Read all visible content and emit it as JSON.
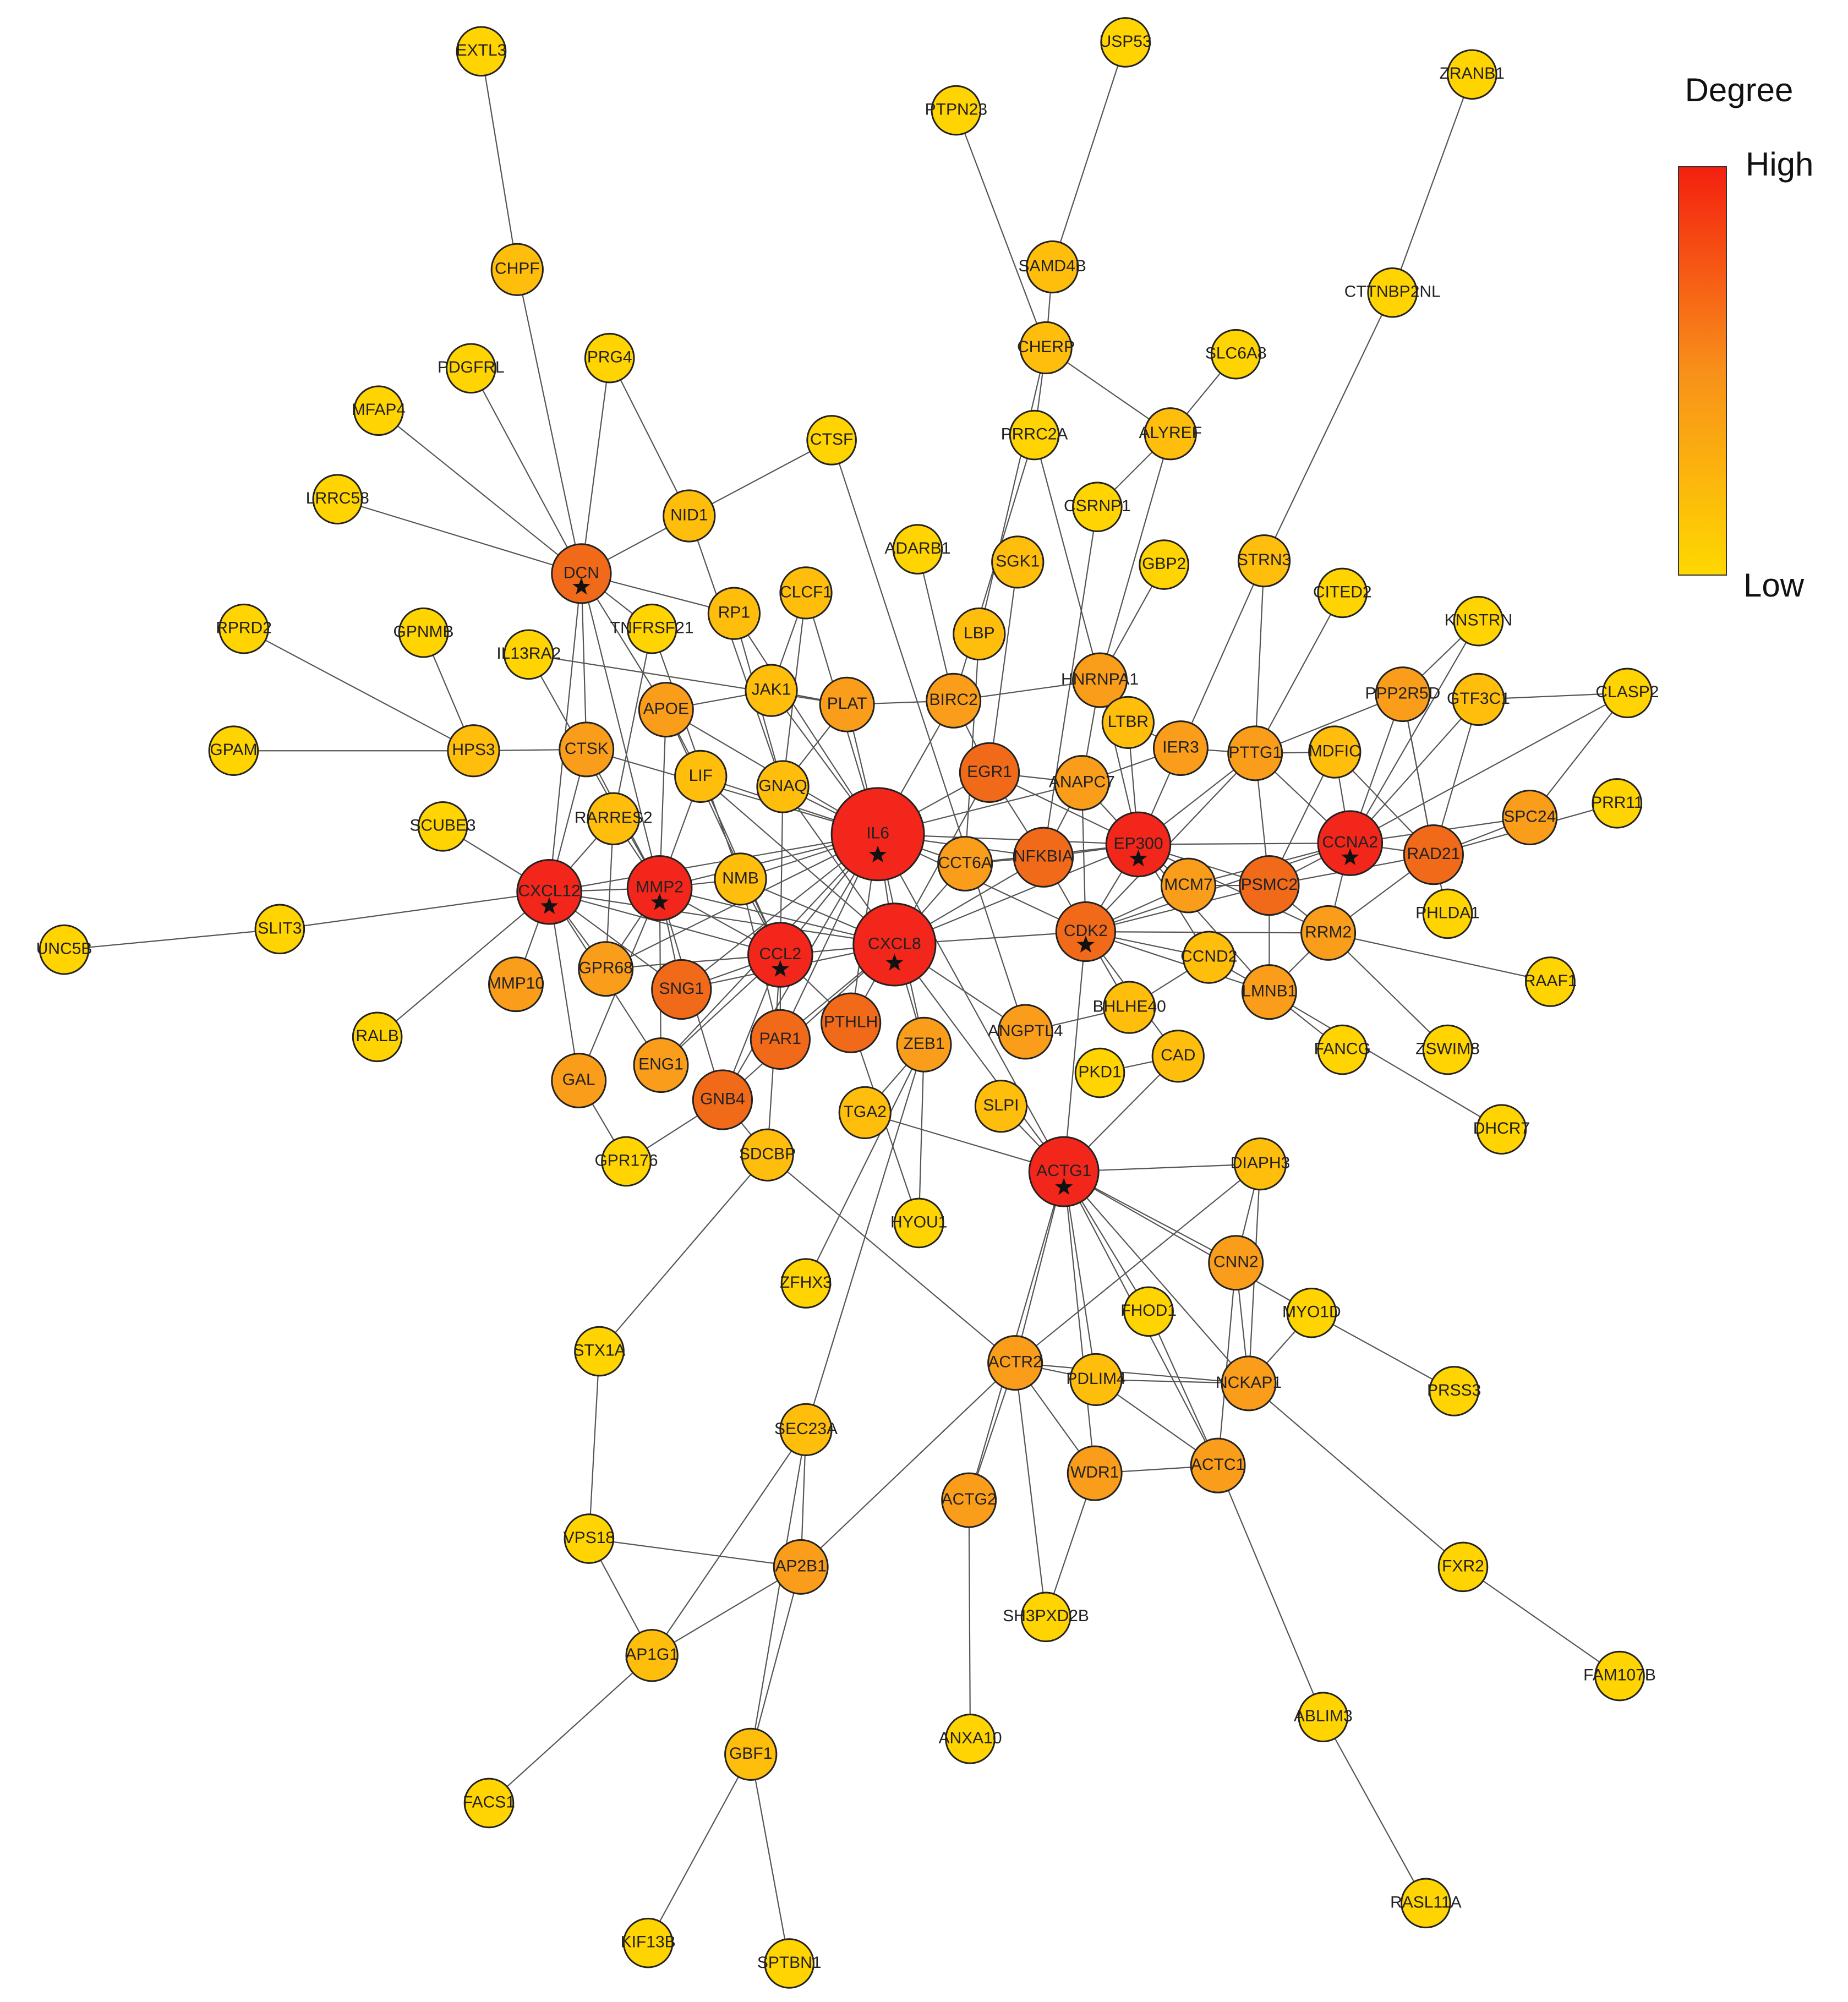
{
  "legend": {
    "title": "Degree",
    "high": "High",
    "low": "Low"
  },
  "nodes": [
    {
      "label": "EXTL3"
    },
    {
      "label": "USP53"
    },
    {
      "label": "PTPN23"
    },
    {
      "label": "ZRANB1"
    },
    {
      "label": "SAMD4B"
    },
    {
      "label": "CHPF"
    },
    {
      "label": "CTTNBP2NL"
    },
    {
      "label": "CHERP"
    },
    {
      "label": "SLC6A8"
    },
    {
      "label": "PDGFRL"
    },
    {
      "label": "PRG4"
    },
    {
      "label": "MFAP4"
    },
    {
      "label": "PRRC2A"
    },
    {
      "label": "ALYREF"
    },
    {
      "label": "CTSF"
    },
    {
      "label": "LRRC58"
    },
    {
      "label": "NID1"
    },
    {
      "label": "CSRNP1"
    },
    {
      "label": "ADARB1"
    },
    {
      "label": "SGK1"
    },
    {
      "label": "GBP2"
    },
    {
      "label": "STRN3"
    },
    {
      "label": "DCN"
    },
    {
      "label": "CITED2"
    },
    {
      "label": "RPRD2"
    },
    {
      "label": "GPNMB"
    },
    {
      "label": "TNFRSF21"
    },
    {
      "label": "RP1"
    },
    {
      "label": "CLCF1"
    },
    {
      "label": "KNSTRN"
    },
    {
      "label": "IL13RA2"
    },
    {
      "label": "LBP"
    },
    {
      "label": "HNRNPA1"
    },
    {
      "label": "PPP2R5D"
    },
    {
      "label": "GTF3C1"
    },
    {
      "label": "CLASP2"
    },
    {
      "label": "APOE"
    },
    {
      "label": "JAK1"
    },
    {
      "label": "PLAT"
    },
    {
      "label": "BIRC2"
    },
    {
      "label": "GPAM"
    },
    {
      "label": "HPS3"
    },
    {
      "label": "CTSK"
    },
    {
      "label": "LTBR"
    },
    {
      "label": "IER3"
    },
    {
      "label": "PTTG1"
    },
    {
      "label": "MDFIC"
    },
    {
      "label": "EGR1"
    },
    {
      "label": "LIF"
    },
    {
      "label": "GNAQ"
    },
    {
      "label": "ANAPC7"
    },
    {
      "label": "PRR11"
    },
    {
      "label": "SCUBE3"
    },
    {
      "label": "RARRES2"
    },
    {
      "label": "IL6"
    },
    {
      "label": "SPC24"
    },
    {
      "label": "EP300"
    },
    {
      "label": "CCNA2"
    },
    {
      "label": "RAD21"
    },
    {
      "label": "CXCL12"
    },
    {
      "label": "MMP2"
    },
    {
      "label": "NMB"
    },
    {
      "label": "CCT6A"
    },
    {
      "label": "NFKBIA"
    },
    {
      "label": "MCM7"
    },
    {
      "label": "PSMC2"
    },
    {
      "label": "UNC5B"
    },
    {
      "label": "SLIT3"
    },
    {
      "label": "PHLDA1"
    },
    {
      "label": "CXCL8"
    },
    {
      "label": "CCL2"
    },
    {
      "label": "CDK2"
    },
    {
      "label": "RRM2"
    },
    {
      "label": "CCND2"
    },
    {
      "label": "GPR68"
    },
    {
      "label": "SNG1"
    },
    {
      "label": "MMP10"
    },
    {
      "label": "RAAF1"
    },
    {
      "label": "LMNB1"
    },
    {
      "label": "BHLHE40"
    },
    {
      "label": "ANGPTL4"
    },
    {
      "label": "PTHLH"
    },
    {
      "label": "PAR1"
    },
    {
      "label": "RALB"
    },
    {
      "label": "ZEB1"
    },
    {
      "label": "FANCG"
    },
    {
      "label": "ZSWIM8"
    },
    {
      "label": "PKD1"
    },
    {
      "label": "CAD"
    },
    {
      "label": "GAL"
    },
    {
      "label": "ENG1"
    },
    {
      "label": "GNB4"
    },
    {
      "label": "TGA2"
    },
    {
      "label": "SLPI"
    },
    {
      "label": "DHCR7"
    },
    {
      "label": "GPR176"
    },
    {
      "label": "SDCBP"
    },
    {
      "label": "ACTG1"
    },
    {
      "label": "DIAPH3"
    },
    {
      "label": "HYOU1"
    },
    {
      "label": "ZFHX3"
    },
    {
      "label": "CNN2"
    },
    {
      "label": "MYO1D"
    },
    {
      "label": "FHOD1"
    },
    {
      "label": "STX1A"
    },
    {
      "label": "ACTR2"
    },
    {
      "label": "PDLIM4"
    },
    {
      "label": "NCKAP1"
    },
    {
      "label": "PRSS3"
    },
    {
      "label": "SEC23A"
    },
    {
      "label": "ACTC1"
    },
    {
      "label": "WDR1"
    },
    {
      "label": "ACTG2"
    },
    {
      "label": "VPS18"
    },
    {
      "label": "AP2B1"
    },
    {
      "label": "FXR2"
    },
    {
      "label": "SH3PXD2B"
    },
    {
      "label": "AP1G1"
    },
    {
      "label": "FAM107B"
    },
    {
      "label": "ABLIM3"
    },
    {
      "label": "ANXA10"
    },
    {
      "label": "GBF1"
    },
    {
      "label": "FACS1"
    },
    {
      "label": "RASL11A"
    },
    {
      "label": "KIF13B"
    },
    {
      "label": "SPTBN1"
    }
  ]
}
